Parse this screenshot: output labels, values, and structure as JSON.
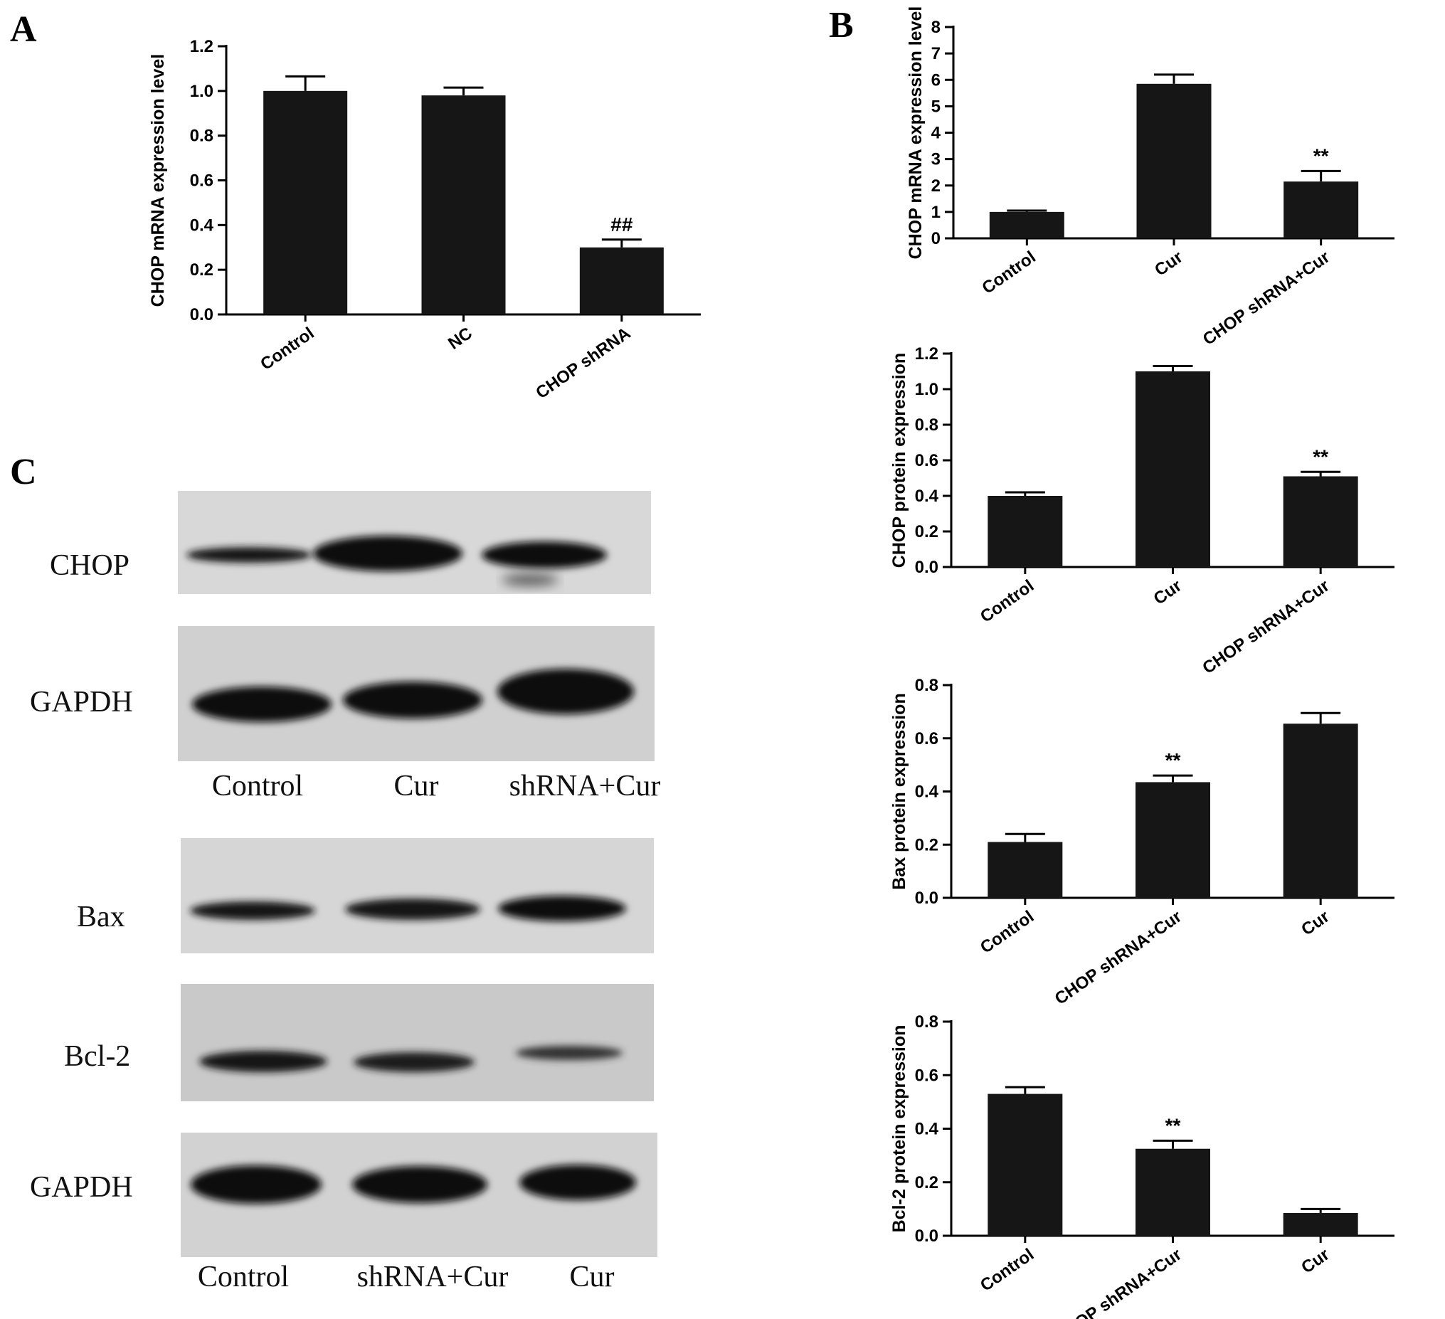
{
  "panels": {
    "A": "A",
    "B": "B",
    "C": "C"
  },
  "chart_data": [
    {
      "id": "A",
      "type": "bar",
      "categories": [
        "Control",
        "NC",
        "CHOP shRNA"
      ],
      "values": [
        1.0,
        0.98,
        0.3
      ],
      "errors": [
        0.065,
        0.035,
        0.035
      ],
      "annotations": [
        "",
        "",
        "##"
      ],
      "ylabel": "CHOP mRNA expression level",
      "ylim": [
        0,
        1.2
      ],
      "yticks": [
        "0.0",
        "0.2",
        "0.4",
        "0.6",
        "0.8",
        "1.0",
        "1.2"
      ],
      "grid": false
    },
    {
      "id": "B1",
      "type": "bar",
      "categories": [
        "Control",
        "Cur",
        "CHOP shRNA+Cur"
      ],
      "values": [
        1.0,
        5.85,
        2.15
      ],
      "errors": [
        0.05,
        0.35,
        0.4
      ],
      "annotations": [
        "",
        "",
        "**"
      ],
      "ylabel": "CHOP mRNA expression level",
      "ylim": [
        0,
        8
      ],
      "yticks": [
        "0",
        "1",
        "2",
        "3",
        "4",
        "5",
        "6",
        "7",
        "8"
      ],
      "grid": false
    },
    {
      "id": "B2",
      "type": "bar",
      "categories": [
        "Control",
        "Cur",
        "CHOP shRNA+Cur"
      ],
      "values": [
        0.4,
        1.1,
        0.51
      ],
      "errors": [
        0.02,
        0.03,
        0.025
      ],
      "annotations": [
        "",
        "",
        "**"
      ],
      "ylabel": "CHOP  protein expression",
      "ylim": [
        0,
        1.2
      ],
      "yticks": [
        "0.0",
        "0.2",
        "0.4",
        "0.6",
        "0.8",
        "1.0",
        "1.2"
      ],
      "grid": false
    },
    {
      "id": "B3",
      "type": "bar",
      "categories": [
        "Control",
        "CHOP shRNA+Cur",
        "Cur"
      ],
      "values": [
        0.21,
        0.435,
        0.655
      ],
      "errors": [
        0.03,
        0.025,
        0.04
      ],
      "annotations": [
        "",
        "**",
        ""
      ],
      "ylabel": "Bax  protein expression",
      "ylim": [
        0,
        0.8
      ],
      "yticks": [
        "0.0",
        "0.2",
        "0.4",
        "0.6",
        "0.8"
      ],
      "grid": false
    },
    {
      "id": "B4",
      "type": "bar",
      "categories": [
        "Control",
        "CHOP shRNA+Cur",
        "Cur"
      ],
      "values": [
        0.53,
        0.325,
        0.085
      ],
      "errors": [
        0.025,
        0.03,
        0.015
      ],
      "annotations": [
        "",
        "**",
        ""
      ],
      "ylabel": "Bcl-2  protein expression",
      "ylim": [
        0,
        0.8
      ],
      "yticks": [
        "0.0",
        "0.2",
        "0.4",
        "0.6",
        "0.8"
      ],
      "grid": false
    }
  ],
  "blots": {
    "group1": {
      "rows": [
        "CHOP",
        "GAPDH"
      ],
      "lanes": [
        "Control",
        "Cur",
        "shRNA+Cur"
      ]
    },
    "group2": {
      "rows": [
        "Bax",
        "Bcl-2",
        "GAPDH"
      ],
      "lanes": [
        "Control",
        "shRNA+Cur",
        "Cur"
      ]
    }
  }
}
